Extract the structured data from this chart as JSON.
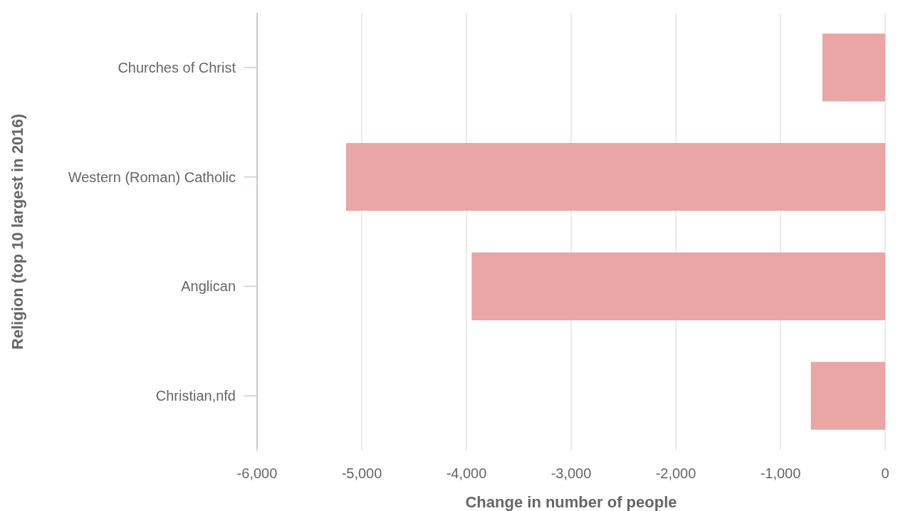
{
  "chart_data": {
    "type": "bar",
    "orientation": "horizontal",
    "xlabel": "Change in number of people",
    "ylabel": "Religion (top 10 largest in 2016)",
    "categories": [
      "Churches of Christ",
      "Western (Roman) Catholic",
      "Anglican",
      "Christian,nfd"
    ],
    "values": [
      -600,
      -5150,
      -3950,
      -710
    ],
    "color": "#eaa5a5",
    "xlim": [
      -6000,
      0
    ],
    "xticks": [
      {
        "value": -6000,
        "label": "-6,000"
      },
      {
        "value": -5000,
        "label": "-5,000"
      },
      {
        "value": -4000,
        "label": "-4,000"
      },
      {
        "value": -3000,
        "label": "-3,000"
      },
      {
        "value": -2000,
        "label": "-2,000"
      },
      {
        "value": -1000,
        "label": "-1,000"
      },
      0
    ],
    "grid": "x"
  }
}
